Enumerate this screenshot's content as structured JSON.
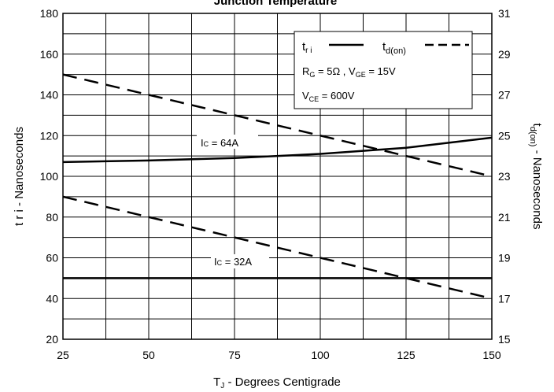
{
  "chart_data": {
    "type": "line",
    "title": "Junction Temperature",
    "xlabel": {
      "pre": "T",
      "sub": "J",
      "post": " - Degrees Centigrade"
    },
    "ylabel": "t r i - Nanoseconds",
    "y2label": {
      "pre": "t",
      "sub": "d(on)",
      "post": " - Nanoseconds"
    },
    "xlim": [
      25,
      150
    ],
    "ylim": [
      20,
      180
    ],
    "y2lim": [
      15,
      31
    ],
    "x_ticks": [
      "25",
      "50",
      "75",
      "100",
      "125",
      "150"
    ],
    "y_ticks": [
      "20",
      "40",
      "60",
      "80",
      "100",
      "120",
      "140",
      "160",
      "180"
    ],
    "y2_ticks": [
      "15",
      "17",
      "19",
      "21",
      "23",
      "25",
      "27",
      "29",
      "31"
    ],
    "grid": true,
    "legend_position": "top-right",
    "series": [
      {
        "name": "t r i",
        "axis": "left",
        "style": "solid",
        "condition": "IC = 64A",
        "x": [
          25,
          50,
          75,
          100,
          125,
          150
        ],
        "y": [
          107,
          107.8,
          109,
          111,
          114,
          119
        ]
      },
      {
        "name": "t r i",
        "axis": "left",
        "style": "solid",
        "condition": "IC = 32A",
        "x": [
          25,
          150
        ],
        "y": [
          50,
          50
        ]
      },
      {
        "name": "t d(on)",
        "axis": "right",
        "style": "dashed",
        "condition": "IC = 64A",
        "x": [
          25,
          150
        ],
        "y": [
          28,
          23
        ]
      },
      {
        "name": "t d(on)",
        "axis": "right",
        "style": "dashed",
        "condition": "IC = 32A",
        "x": [
          25,
          150
        ],
        "y": [
          22,
          17
        ]
      }
    ],
    "legend": {
      "tri_pre": "t",
      "tri_sub": "r i",
      "tdon_pre": "t",
      "tdon_sub": "d(on)",
      "line1": {
        "r_pre": "R",
        "r_sub": "G",
        "r_val": " = 5Ω ,  V",
        "v_sub": "GE",
        "v_val": " = 15V"
      },
      "line2": {
        "pre": "V",
        "sub": "CE",
        "val": " = 600V"
      }
    },
    "annotations": [
      {
        "pre": "I",
        "sub": "C",
        "post": " = 64A"
      },
      {
        "pre": "I",
        "sub": "C",
        "post": " = 32A"
      }
    ]
  }
}
